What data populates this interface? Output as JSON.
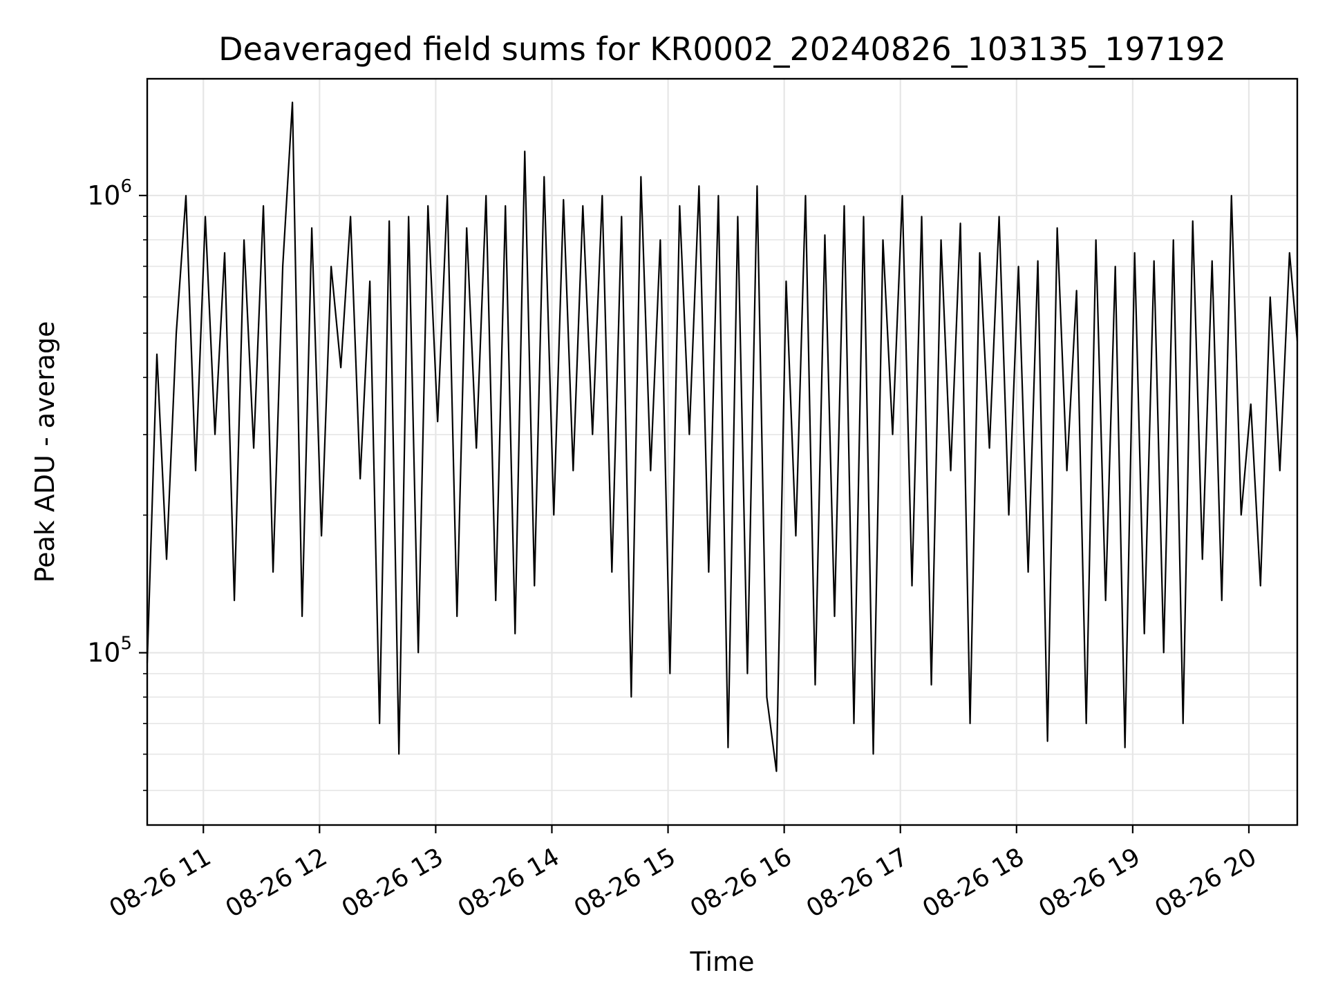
{
  "chart_data": {
    "type": "line",
    "title": "Deaveraged field sums for KR0002_20240826_103135_197192",
    "xlabel": "Time",
    "ylabel": "Peak ADU - average",
    "yscale": "log",
    "xlim": [
      "2024-08-26 10:31",
      "2024-08-26 20:25"
    ],
    "ylim": [
      42000,
      1800000
    ],
    "grid": true,
    "line_color": "#000000",
    "x_ticks": [
      {
        "t": "2024-08-26 11:00",
        "label": "08-26 11"
      },
      {
        "t": "2024-08-26 12:00",
        "label": "08-26 12"
      },
      {
        "t": "2024-08-26 13:00",
        "label": "08-26 13"
      },
      {
        "t": "2024-08-26 14:00",
        "label": "08-26 14"
      },
      {
        "t": "2024-08-26 15:00",
        "label": "08-26 15"
      },
      {
        "t": "2024-08-26 16:00",
        "label": "08-26 16"
      },
      {
        "t": "2024-08-26 17:00",
        "label": "08-26 17"
      },
      {
        "t": "2024-08-26 18:00",
        "label": "08-26 18"
      },
      {
        "t": "2024-08-26 19:00",
        "label": "08-26 19"
      },
      {
        "t": "2024-08-26 20:00",
        "label": "08-26 20"
      }
    ],
    "y_ticks": [
      {
        "value": 100000,
        "base": "10",
        "exp": "5"
      },
      {
        "value": 1000000,
        "base": "10",
        "exp": "6"
      }
    ],
    "series": [
      {
        "x": [
          "2024-08-26 10:31",
          "2024-08-26 10:36",
          "2024-08-26 10:41",
          "2024-08-26 10:46",
          "2024-08-26 10:51",
          "2024-08-26 10:56",
          "2024-08-26 11:01",
          "2024-08-26 11:06",
          "2024-08-26 11:11",
          "2024-08-26 11:16",
          "2024-08-26 11:21",
          "2024-08-26 11:26",
          "2024-08-26 11:31",
          "2024-08-26 11:36",
          "2024-08-26 11:41",
          "2024-08-26 11:46",
          "2024-08-26 11:51",
          "2024-08-26 11:56",
          "2024-08-26 12:01",
          "2024-08-26 12:06",
          "2024-08-26 12:11",
          "2024-08-26 12:16",
          "2024-08-26 12:21",
          "2024-08-26 12:26",
          "2024-08-26 12:31",
          "2024-08-26 12:36",
          "2024-08-26 12:41",
          "2024-08-26 12:46",
          "2024-08-26 12:51",
          "2024-08-26 12:56",
          "2024-08-26 13:01",
          "2024-08-26 13:06",
          "2024-08-26 13:11",
          "2024-08-26 13:16",
          "2024-08-26 13:21",
          "2024-08-26 13:26",
          "2024-08-26 13:31",
          "2024-08-26 13:36",
          "2024-08-26 13:41",
          "2024-08-26 13:46",
          "2024-08-26 13:51",
          "2024-08-26 13:56",
          "2024-08-26 14:01",
          "2024-08-26 14:06",
          "2024-08-26 14:11",
          "2024-08-26 14:16",
          "2024-08-26 14:21",
          "2024-08-26 14:26",
          "2024-08-26 14:31",
          "2024-08-26 14:36",
          "2024-08-26 14:41",
          "2024-08-26 14:46",
          "2024-08-26 14:51",
          "2024-08-26 14:56",
          "2024-08-26 15:01",
          "2024-08-26 15:06",
          "2024-08-26 15:11",
          "2024-08-26 15:16",
          "2024-08-26 15:21",
          "2024-08-26 15:26",
          "2024-08-26 15:31",
          "2024-08-26 15:36",
          "2024-08-26 15:41",
          "2024-08-26 15:46",
          "2024-08-26 15:51",
          "2024-08-26 15:56",
          "2024-08-26 16:01",
          "2024-08-26 16:06",
          "2024-08-26 16:11",
          "2024-08-26 16:16",
          "2024-08-26 16:21",
          "2024-08-26 16:26",
          "2024-08-26 16:31",
          "2024-08-26 16:36",
          "2024-08-26 16:41",
          "2024-08-26 16:46",
          "2024-08-26 16:51",
          "2024-08-26 16:56",
          "2024-08-26 17:01",
          "2024-08-26 17:06",
          "2024-08-26 17:11",
          "2024-08-26 17:16",
          "2024-08-26 17:21",
          "2024-08-26 17:26",
          "2024-08-26 17:31",
          "2024-08-26 17:36",
          "2024-08-26 17:41",
          "2024-08-26 17:46",
          "2024-08-26 17:51",
          "2024-08-26 17:56",
          "2024-08-26 18:01",
          "2024-08-26 18:06",
          "2024-08-26 18:11",
          "2024-08-26 18:16",
          "2024-08-26 18:21",
          "2024-08-26 18:26",
          "2024-08-26 18:31",
          "2024-08-26 18:36",
          "2024-08-26 18:41",
          "2024-08-26 18:46",
          "2024-08-26 18:51",
          "2024-08-26 18:56",
          "2024-08-26 19:01",
          "2024-08-26 19:06",
          "2024-08-26 19:11",
          "2024-08-26 19:16",
          "2024-08-26 19:21",
          "2024-08-26 19:26",
          "2024-08-26 19:31",
          "2024-08-26 19:36",
          "2024-08-26 19:41",
          "2024-08-26 19:46",
          "2024-08-26 19:51",
          "2024-08-26 19:56",
          "2024-08-26 20:01",
          "2024-08-26 20:06",
          "2024-08-26 20:11",
          "2024-08-26 20:16",
          "2024-08-26 20:21",
          "2024-08-26 20:25"
        ],
        "y": [
          95000,
          450000,
          160000,
          500000,
          1000000,
          250000,
          900000,
          300000,
          750000,
          130000,
          800000,
          280000,
          950000,
          150000,
          700000,
          1600000,
          120000,
          850000,
          180000,
          700000,
          420000,
          900000,
          240000,
          650000,
          70000,
          880000,
          60000,
          900000,
          100000,
          950000,
          320000,
          1000000,
          120000,
          850000,
          280000,
          1000000,
          130000,
          950000,
          110000,
          1250000,
          140000,
          1100000,
          200000,
          980000,
          250000,
          950000,
          300000,
          1000000,
          150000,
          900000,
          80000,
          1100000,
          250000,
          800000,
          90000,
          950000,
          300000,
          1050000,
          150000,
          1000000,
          62000,
          900000,
          90000,
          1050000,
          80000,
          55000,
          650000,
          180000,
          1000000,
          85000,
          820000,
          120000,
          950000,
          70000,
          900000,
          60000,
          800000,
          300000,
          1000000,
          140000,
          900000,
          85000,
          800000,
          250000,
          870000,
          70000,
          750000,
          280000,
          900000,
          200000,
          700000,
          150000,
          720000,
          64000,
          850000,
          250000,
          620000,
          70000,
          800000,
          130000,
          700000,
          62000,
          750000,
          110000,
          720000,
          100000,
          800000,
          70000,
          880000,
          160000,
          720000,
          130000,
          1000000,
          200000,
          350000,
          140000,
          600000,
          250000,
          750000,
          480000
        ]
      }
    ]
  }
}
